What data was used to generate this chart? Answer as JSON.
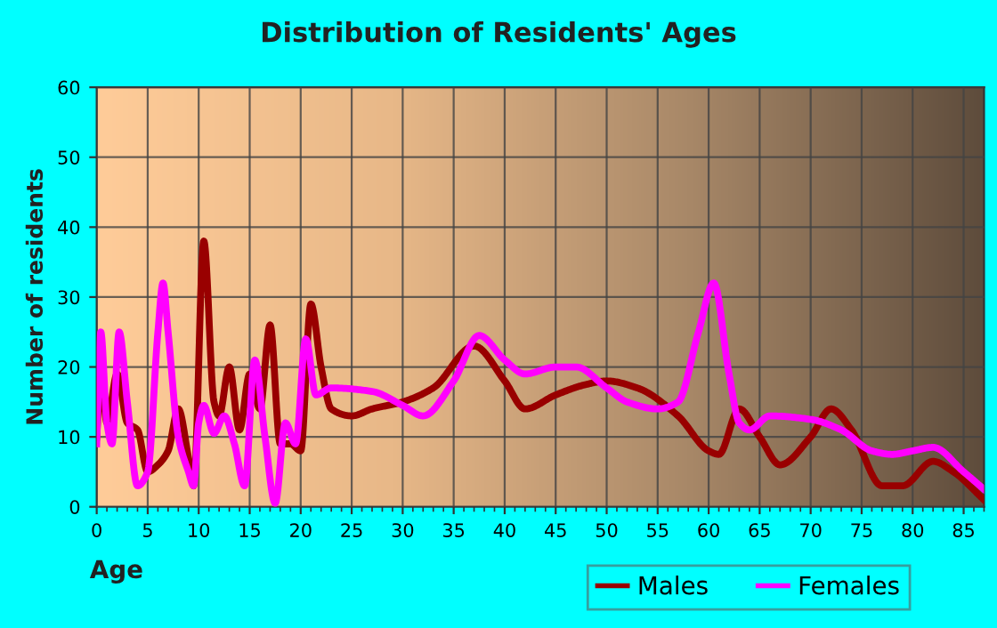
{
  "chart_data": {
    "type": "line",
    "title": "Distribution of Residents' Ages",
    "xlabel": "Age",
    "ylabel": "Number of residents",
    "xlim": [
      0,
      87
    ],
    "xticks": [
      0,
      5,
      10,
      15,
      20,
      25,
      30,
      35,
      40,
      45,
      50,
      55,
      60,
      65,
      70,
      75,
      80,
      85
    ],
    "ylim": [
      0,
      60
    ],
    "yticks": [
      0,
      10,
      20,
      30,
      40,
      50,
      60
    ],
    "grid": true,
    "legend": "bottom right",
    "marker": "none",
    "line_style": "solid",
    "series": [
      {
        "name": "Males",
        "color": "#990000",
        "x": [
          0,
          0.4,
          1,
          2,
          3,
          4,
          5,
          6,
          7,
          8,
          9,
          9.5,
          10.5,
          11.5,
          12,
          13,
          14,
          15,
          16,
          17,
          18,
          19,
          20,
          21,
          22,
          23,
          25,
          27,
          30,
          33,
          37,
          40,
          42,
          45,
          48,
          50,
          53,
          57,
          60,
          61,
          63,
          65,
          67,
          70,
          72,
          74,
          77,
          79,
          82,
          84,
          87
        ],
        "values": [
          10,
          19,
          12,
          19,
          12,
          11,
          5,
          6,
          8,
          14,
          7,
          3,
          38,
          15,
          13,
          20,
          11,
          19,
          14,
          26,
          9,
          9,
          8,
          29,
          20,
          14,
          13,
          14,
          15,
          17,
          23,
          18,
          14,
          16,
          17.5,
          18,
          17,
          13,
          8,
          7.5,
          14,
          10,
          6,
          10,
          14,
          11,
          3,
          3,
          6.5,
          5,
          1
        ]
      },
      {
        "name": "Females",
        "color": "#ff00ff",
        "x": [
          0,
          0.4,
          1,
          1.5,
          2.2,
          3,
          4,
          5,
          6,
          6.5,
          7,
          8,
          9,
          9.5,
          10,
          10.5,
          11.5,
          12.5,
          13.5,
          14.5,
          15.5,
          16.5,
          17.5,
          18.5,
          19.5,
          20.5,
          21.5,
          23,
          27,
          30,
          32,
          35,
          37.5,
          40,
          42,
          45,
          47,
          50,
          52,
          55,
          57,
          59,
          60.5,
          62,
          63,
          64,
          66,
          70,
          73,
          76,
          78,
          80,
          82,
          85,
          87
        ],
        "values": [
          9,
          25,
          12,
          9,
          25,
          15,
          3,
          5,
          25,
          32,
          25,
          10,
          5,
          3,
          12,
          14.5,
          10.5,
          13,
          9,
          3,
          21,
          10,
          0.5,
          12,
          9,
          24,
          16,
          17,
          16.5,
          14.5,
          13,
          18,
          24.5,
          21,
          19,
          20,
          20,
          17,
          15,
          14,
          15,
          25,
          32,
          19,
          12,
          11,
          13,
          12.5,
          11,
          8,
          7.5,
          8,
          8.5,
          5,
          2.5
        ]
      }
    ]
  }
}
